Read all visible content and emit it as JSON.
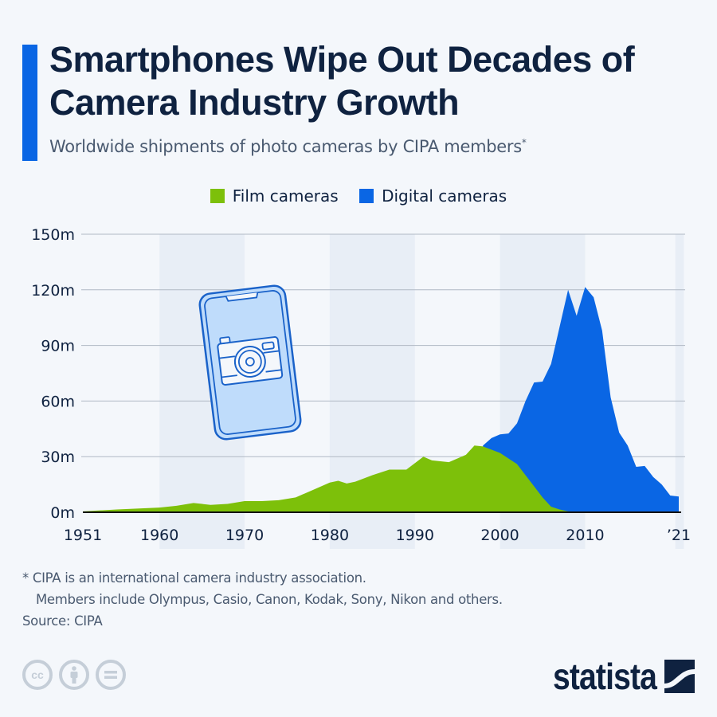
{
  "header": {
    "title": "Smartphones Wipe Out Decades of Camera Industry Growth",
    "subtitle": "Worldwide shipments of photo cameras by CIPA members",
    "subtitle_marker": "*"
  },
  "colors": {
    "accent": "#0a66e4",
    "film": "#7dc00a",
    "digital": "#0a66e4",
    "band": "#e8eef6",
    "grid": "#b0b8c4",
    "text": "#0f2240",
    "phone_fill": "#bfdcfb",
    "phone_stroke": "#1a62c9"
  },
  "chart_data": {
    "type": "area",
    "stacked": true,
    "title": "Smartphones Wipe Out Decades of Camera Industry Growth",
    "subtitle": "Worldwide shipments of photo cameras by CIPA members*",
    "xlabel": "",
    "ylabel": "",
    "xlim": [
      1951,
      2021
    ],
    "ylim": [
      0,
      150
    ],
    "yticks": [
      0,
      30,
      60,
      90,
      120,
      150
    ],
    "ytick_labels": [
      "0m",
      "30m",
      "60m",
      "90m",
      "120m",
      "150m"
    ],
    "xticks": [
      1951,
      1960,
      1970,
      1980,
      1990,
      2000,
      2010,
      2021
    ],
    "xtick_labels": [
      "1951",
      "1960",
      "1970",
      "1980",
      "1990",
      "2000",
      "2010",
      "’21"
    ],
    "shaded_bands": [
      [
        1960,
        1970
      ],
      [
        1980,
        1990
      ],
      [
        2000,
        2010
      ],
      [
        2020.6,
        2021.6
      ]
    ],
    "grid": true,
    "legend_position": "top-center",
    "series": [
      {
        "name": "Film cameras",
        "color": "#7dc00a",
        "points": [
          [
            1951,
            0.5
          ],
          [
            1955,
            1.5
          ],
          [
            1960,
            2.5
          ],
          [
            1962,
            3.5
          ],
          [
            1964,
            5
          ],
          [
            1966,
            4
          ],
          [
            1968,
            4.5
          ],
          [
            1970,
            6
          ],
          [
            1972,
            6
          ],
          [
            1974,
            6.5
          ],
          [
            1976,
            8
          ],
          [
            1978,
            12
          ],
          [
            1980,
            16
          ],
          [
            1981,
            17
          ],
          [
            1982,
            15.5
          ],
          [
            1983,
            16.5
          ],
          [
            1985,
            20
          ],
          [
            1987,
            23
          ],
          [
            1989,
            23
          ],
          [
            1991,
            30
          ],
          [
            1992,
            28
          ],
          [
            1994,
            27
          ],
          [
            1996,
            31
          ],
          [
            1997,
            36
          ],
          [
            1998,
            35.5
          ],
          [
            2000,
            32
          ],
          [
            2002,
            26
          ],
          [
            2003,
            20
          ],
          [
            2004,
            14
          ],
          [
            2005,
            8
          ],
          [
            2006,
            3
          ],
          [
            2007,
            1.5
          ],
          [
            2008,
            0.5
          ],
          [
            2009,
            0.3
          ],
          [
            2010,
            0.1
          ],
          [
            2021,
            0
          ]
        ]
      },
      {
        "name": "Digital cameras",
        "color": "#0a66e4",
        "stacked_total_points": [
          [
            1998,
            36
          ],
          [
            1999,
            40
          ],
          [
            2000,
            42
          ],
          [
            2001,
            42.5
          ],
          [
            2002,
            48
          ],
          [
            2003,
            60
          ],
          [
            2004,
            70
          ],
          [
            2005,
            70.5
          ],
          [
            2006,
            80
          ],
          [
            2007,
            100
          ],
          [
            2008,
            120
          ],
          [
            2009,
            106
          ],
          [
            2010,
            121.5
          ],
          [
            2011,
            116
          ],
          [
            2012,
            98
          ],
          [
            2013,
            62
          ],
          [
            2014,
            43
          ],
          [
            2015,
            36
          ],
          [
            2016,
            24.5
          ],
          [
            2017,
            25
          ],
          [
            2018,
            19
          ],
          [
            2019,
            15
          ],
          [
            2020,
            9
          ],
          [
            2021,
            8.5
          ]
        ]
      }
    ]
  },
  "legend": {
    "items": [
      {
        "label": "Film cameras",
        "color": "#7dc00a"
      },
      {
        "label": "Digital cameras",
        "color": "#0a66e4"
      }
    ]
  },
  "illustration": {
    "icon": "smartphone-camera-icon"
  },
  "footer": {
    "note_line1": "* CIPA is an international camera industry association.",
    "note_line2": "Members include Olympus, Casio, Canon, Kodak, Sony, Nikon and others.",
    "source": "Source: CIPA",
    "license_icons": [
      "cc-icon",
      "attribution-icon",
      "no-derivatives-icon"
    ],
    "cc_label": "cc",
    "brand": "statista"
  }
}
